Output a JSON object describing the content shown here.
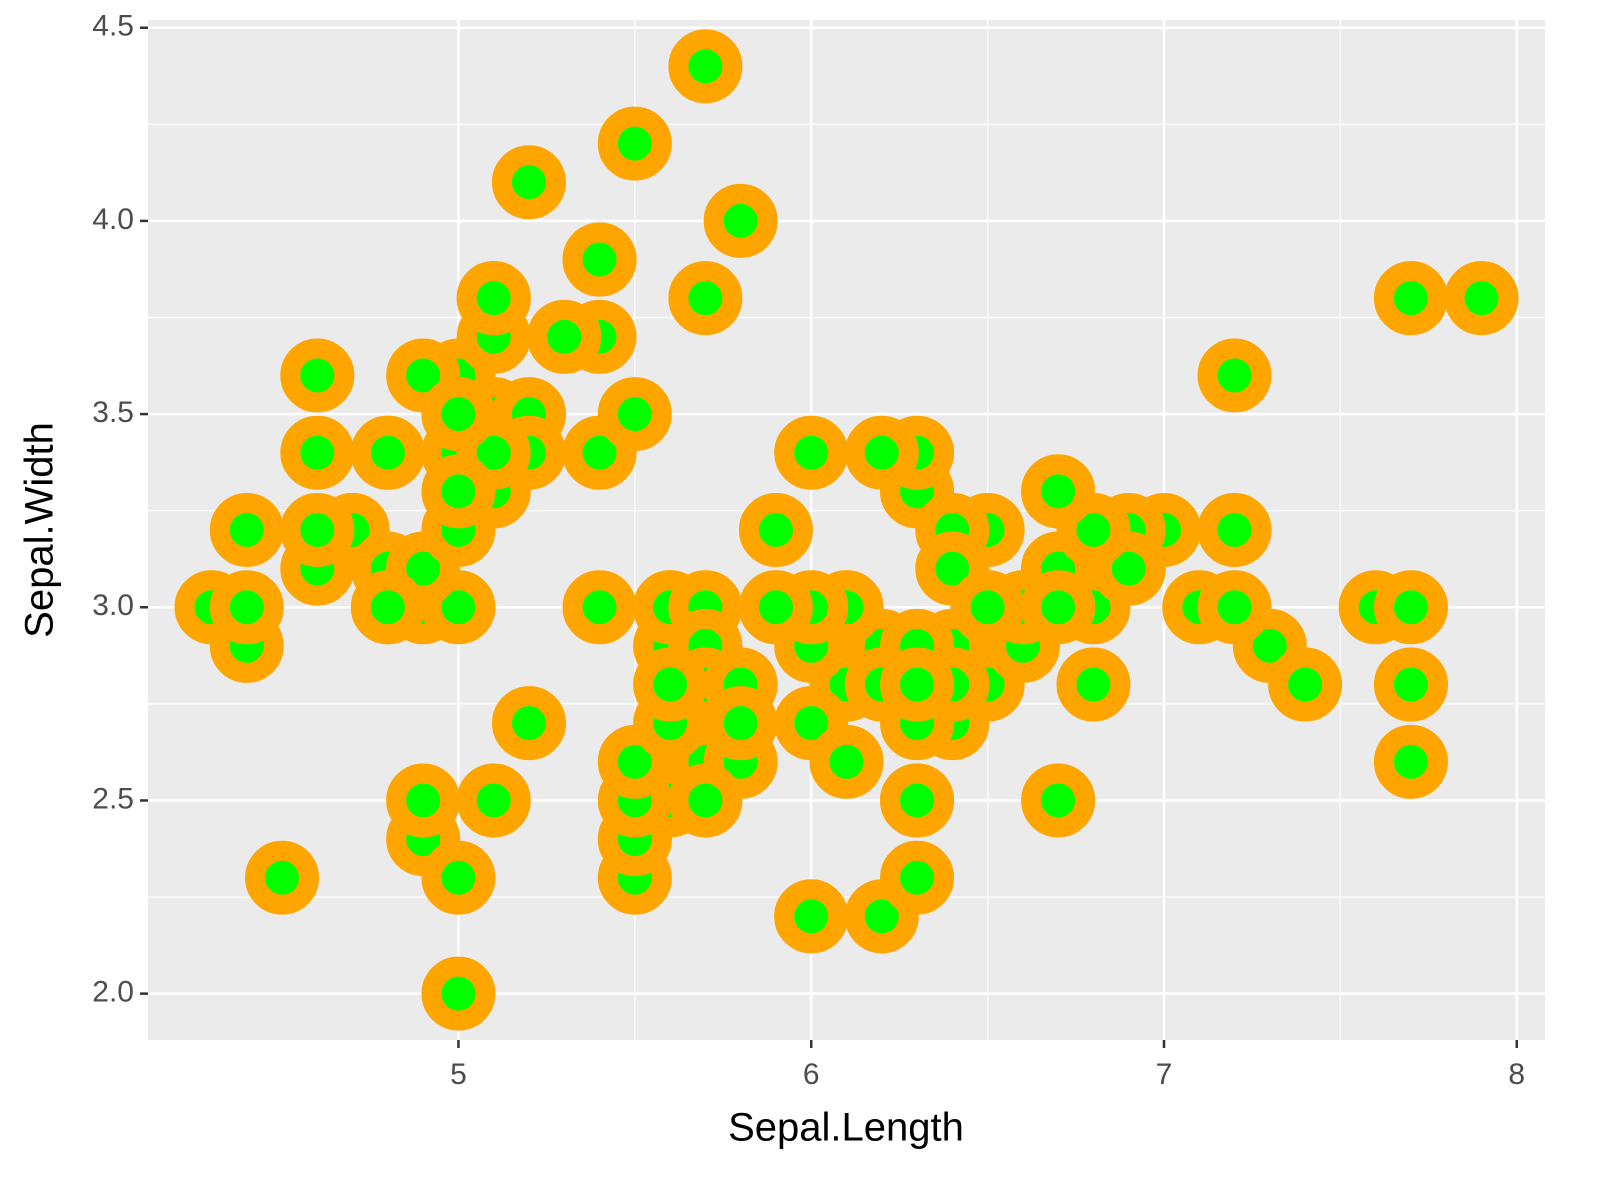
{
  "chart_data": {
    "type": "scatter",
    "xlabel": "Sepal.Length",
    "ylabel": "Sepal.Width",
    "x": [
      5.1,
      4.9,
      4.7,
      4.6,
      5.0,
      5.4,
      4.6,
      5.0,
      4.4,
      4.9,
      5.4,
      4.8,
      4.8,
      4.3,
      5.8,
      5.7,
      5.4,
      5.1,
      5.7,
      5.1,
      5.4,
      5.1,
      4.6,
      5.1,
      4.8,
      5.0,
      5.0,
      5.2,
      5.2,
      4.7,
      4.8,
      5.4,
      5.2,
      5.5,
      4.9,
      5.0,
      5.5,
      4.9,
      4.4,
      5.1,
      5.0,
      4.5,
      4.4,
      5.0,
      5.1,
      4.8,
      5.1,
      4.6,
      5.3,
      5.0,
      7.0,
      6.4,
      6.9,
      5.5,
      6.5,
      5.7,
      6.3,
      4.9,
      6.6,
      5.2,
      5.0,
      5.9,
      6.0,
      6.1,
      5.6,
      6.7,
      5.6,
      5.8,
      6.2,
      5.6,
      5.9,
      6.1,
      6.3,
      6.1,
      6.4,
      6.6,
      6.8,
      6.7,
      6.0,
      5.7,
      5.5,
      5.5,
      5.8,
      6.0,
      5.4,
      6.0,
      6.7,
      6.3,
      5.6,
      5.5,
      5.5,
      6.1,
      5.8,
      5.0,
      5.6,
      5.7,
      5.7,
      6.2,
      5.1,
      5.7,
      6.3,
      5.8,
      7.1,
      6.3,
      6.5,
      7.6,
      4.9,
      7.3,
      6.7,
      7.2,
      6.5,
      6.4,
      6.8,
      5.7,
      5.8,
      6.4,
      6.5,
      7.7,
      7.7,
      6.0,
      6.9,
      5.6,
      7.7,
      6.3,
      6.7,
      7.2,
      6.2,
      6.1,
      6.4,
      7.2,
      7.4,
      7.9,
      6.4,
      6.3,
      6.1,
      7.7,
      6.3,
      6.4,
      6.0,
      6.9,
      6.7,
      6.9,
      5.8,
      6.8,
      6.7,
      6.7,
      6.3,
      6.5,
      6.2,
      5.9
    ],
    "y": [
      3.5,
      3.0,
      3.2,
      3.1,
      3.6,
      3.9,
      3.4,
      3.4,
      2.9,
      3.1,
      3.7,
      3.4,
      3.0,
      3.0,
      4.0,
      4.4,
      3.9,
      3.5,
      3.8,
      3.8,
      3.4,
      3.7,
      3.6,
      3.3,
      3.4,
      3.0,
      3.4,
      3.5,
      3.4,
      3.2,
      3.1,
      3.4,
      4.1,
      4.2,
      3.1,
      3.2,
      3.5,
      3.6,
      3.0,
      3.4,
      3.5,
      2.3,
      3.2,
      3.5,
      3.8,
      3.0,
      3.8,
      3.2,
      3.7,
      3.3,
      3.2,
      3.2,
      3.1,
      2.3,
      2.8,
      2.8,
      3.3,
      2.4,
      2.9,
      2.7,
      2.0,
      3.0,
      2.2,
      2.9,
      2.9,
      3.1,
      3.0,
      2.7,
      2.2,
      2.5,
      3.2,
      2.8,
      2.5,
      2.8,
      2.9,
      3.0,
      2.8,
      3.0,
      2.9,
      2.6,
      2.4,
      2.4,
      2.7,
      2.7,
      3.0,
      3.4,
      3.1,
      2.3,
      3.0,
      2.5,
      2.6,
      3.0,
      2.6,
      2.3,
      2.7,
      3.0,
      2.9,
      2.9,
      2.5,
      2.8,
      3.3,
      2.7,
      3.0,
      2.9,
      3.0,
      3.0,
      2.5,
      2.9,
      2.5,
      3.6,
      3.2,
      2.7,
      3.0,
      2.5,
      2.8,
      3.2,
      3.0,
      3.8,
      2.6,
      2.2,
      3.2,
      2.8,
      2.8,
      2.7,
      3.3,
      3.2,
      2.8,
      3.0,
      2.8,
      3.0,
      2.8,
      3.8,
      2.8,
      2.8,
      2.6,
      3.0,
      3.4,
      3.1,
      3.0,
      3.1,
      3.1,
      3.1,
      2.7,
      3.2,
      3.3,
      3.0,
      2.5,
      3.0,
      3.4,
      3.0
    ],
    "color": "#00ff00",
    "edgecolor": "#ffa500",
    "xlim": [
      4.12,
      8.08
    ],
    "ylim": [
      1.88,
      4.52
    ],
    "xticks": [
      5,
      6,
      7,
      8
    ],
    "yticks": [
      {
        "value": 2,
        "label": "2.0"
      },
      2.5,
      {
        "value": 3,
        "label": "3.0"
      },
      3.5,
      {
        "value": 4,
        "label": "4.0"
      },
      4.5
    ],
    "grid": true,
    "minor_grid": true
  }
}
